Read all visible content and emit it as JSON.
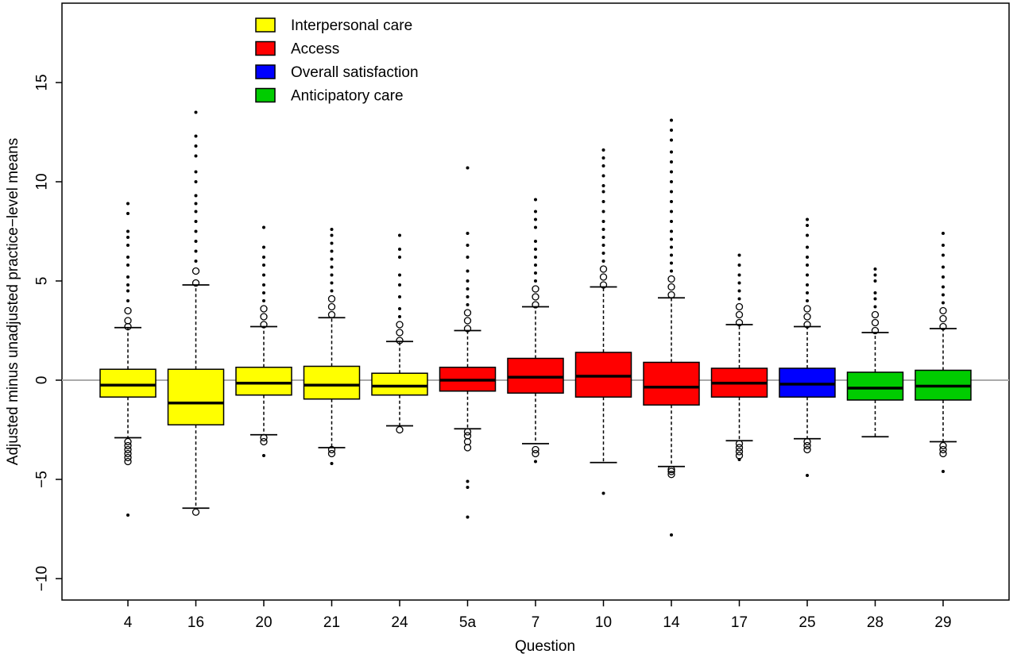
{
  "chart_data": {
    "type": "boxplot",
    "xlabel": "Question",
    "ylabel": "Adjusted minus unadjusted practice−level means",
    "ylim": [
      -11.2,
      19.0
    ],
    "yticks": [
      -10,
      -5,
      0,
      5,
      10,
      15
    ],
    "ytick_labels": [
      "−10",
      "−5",
      "0",
      "5",
      "10",
      "15"
    ],
    "reference_line": 0,
    "reference_color": "#aaaaaa",
    "legend": {
      "position": "top-left",
      "entries": [
        {
          "label": "Interpersonal care",
          "color": "#ffff00"
        },
        {
          "label": "Access",
          "color": "#ff0000"
        },
        {
          "label": "Overall satisfaction",
          "color": "#0000ff"
        },
        {
          "label": "Anticipatory care",
          "color": "#00cc00"
        }
      ]
    },
    "categories": [
      "4",
      "16",
      "20",
      "21",
      "24",
      "5a",
      "7",
      "10",
      "14",
      "17",
      "25",
      "28",
      "29"
    ],
    "boxes": [
      {
        "q1": -0.85,
        "median": -0.25,
        "q3": 0.55,
        "whisker_low": -2.9,
        "whisker_high": 2.65,
        "color": "#ffff00",
        "outliers_high": [
          2.7,
          3.0,
          3.5,
          4.0,
          4.5,
          4.8,
          5.2,
          5.8,
          6.2,
          6.8,
          7.2,
          7.5,
          8.4,
          8.9
        ],
        "outliers_low": [
          -3.1,
          -3.3,
          -3.5,
          -3.7,
          -3.9,
          -4.1,
          -6.8
        ]
      },
      {
        "q1": -2.25,
        "median": -1.15,
        "q3": 0.55,
        "whisker_low": -6.45,
        "whisker_high": 4.8,
        "color": "#ffff00",
        "outliers_high": [
          4.9,
          5.5,
          6.0,
          6.5,
          7.0,
          7.5,
          8.0,
          8.5,
          8.9,
          9.3,
          10.0,
          10.5,
          11.3,
          11.8,
          12.3,
          13.5
        ],
        "outliers_low": [
          -6.65
        ]
      },
      {
        "q1": -0.75,
        "median": -0.15,
        "q3": 0.65,
        "whisker_low": -2.75,
        "whisker_high": 2.7,
        "color": "#ffff00",
        "outliers_high": [
          2.8,
          3.2,
          3.6,
          4.0,
          4.4,
          4.8,
          5.3,
          5.8,
          6.2,
          6.7,
          7.7
        ],
        "outliers_low": [
          -2.9,
          -3.1,
          -3.8
        ]
      },
      {
        "q1": -0.95,
        "median": -0.25,
        "q3": 0.7,
        "whisker_low": -3.4,
        "whisker_high": 3.15,
        "color": "#ffff00",
        "outliers_high": [
          3.3,
          3.7,
          4.1,
          4.5,
          4.9,
          5.3,
          5.7,
          6.1,
          6.5,
          6.9,
          7.3,
          7.6
        ],
        "outliers_low": [
          -3.5,
          -3.7,
          -4.2
        ]
      },
      {
        "q1": -0.75,
        "median": -0.3,
        "q3": 0.35,
        "whisker_low": -2.3,
        "whisker_high": 1.95,
        "color": "#ffff00",
        "outliers_high": [
          2.0,
          2.4,
          2.8,
          3.2,
          3.6,
          4.2,
          4.8,
          5.3,
          6.2,
          6.6,
          7.3
        ],
        "outliers_low": [
          -2.5
        ]
      },
      {
        "q1": -0.55,
        "median": 0.0,
        "q3": 0.65,
        "whisker_low": -2.45,
        "whisker_high": 2.5,
        "color": "#ff0000",
        "outliers_high": [
          2.6,
          3.0,
          3.4,
          3.8,
          4.2,
          4.6,
          5.0,
          5.5,
          6.2,
          6.8,
          7.4,
          10.7
        ],
        "outliers_low": [
          -2.6,
          -2.8,
          -3.1,
          -3.4,
          -5.1,
          -5.4,
          -6.9
        ]
      },
      {
        "q1": -0.65,
        "median": 0.15,
        "q3": 1.1,
        "whisker_low": -3.2,
        "whisker_high": 3.7,
        "color": "#ff0000",
        "outliers_high": [
          3.8,
          4.2,
          4.6,
          5.0,
          5.4,
          5.8,
          6.2,
          6.6,
          7.0,
          7.7,
          8.1,
          8.5,
          9.1
        ],
        "outliers_low": [
          -3.5,
          -3.7,
          -4.1
        ]
      },
      {
        "q1": -0.85,
        "median": 0.2,
        "q3": 1.4,
        "whisker_low": -4.15,
        "whisker_high": 4.7,
        "color": "#ff0000",
        "outliers_high": [
          4.8,
          5.2,
          5.6,
          6.0,
          6.4,
          6.8,
          7.2,
          7.6,
          8.0,
          8.5,
          9.0,
          9.5,
          9.8,
          10.3,
          10.8,
          11.2,
          11.6
        ],
        "outliers_low": [
          -5.7
        ]
      },
      {
        "q1": -1.25,
        "median": -0.35,
        "q3": 0.9,
        "whisker_low": -4.35,
        "whisker_high": 4.15,
        "color": "#ff0000",
        "outliers_high": [
          4.3,
          4.7,
          5.1,
          5.5,
          5.9,
          6.3,
          6.7,
          7.1,
          7.5,
          8.0,
          8.5,
          9.0,
          9.5,
          10.0,
          10.5,
          11.0,
          11.5,
          12.1,
          12.6,
          13.1
        ],
        "outliers_low": [
          -4.5,
          -4.6,
          -4.75,
          -7.8
        ]
      },
      {
        "q1": -0.85,
        "median": -0.15,
        "q3": 0.6,
        "whisker_low": -3.05,
        "whisker_high": 2.8,
        "color": "#ff0000",
        "outliers_high": [
          2.9,
          3.3,
          3.7,
          4.1,
          4.5,
          4.9,
          5.3,
          5.8,
          6.3
        ],
        "outliers_low": [
          -3.2,
          -3.4,
          -3.6,
          -3.8,
          -4.0
        ]
      },
      {
        "q1": -0.85,
        "median": -0.2,
        "q3": 0.6,
        "whisker_low": -2.95,
        "whisker_high": 2.7,
        "color": "#0000ff",
        "outliers_high": [
          2.8,
          3.2,
          3.6,
          4.0,
          4.4,
          4.8,
          5.3,
          5.8,
          6.2,
          6.7,
          7.3,
          7.8,
          8.1
        ],
        "outliers_low": [
          -3.1,
          -3.3,
          -3.5,
          -4.8
        ]
      },
      {
        "q1": -1.0,
        "median": -0.4,
        "q3": 0.4,
        "whisker_low": -2.85,
        "whisker_high": 2.4,
        "color": "#00cc00",
        "outliers_high": [
          2.5,
          2.9,
          3.3,
          3.7,
          4.1,
          4.4,
          5.0,
          5.3,
          5.6
        ],
        "outliers_low": []
      },
      {
        "q1": -1.0,
        "median": -0.3,
        "q3": 0.5,
        "whisker_low": -3.1,
        "whisker_high": 2.6,
        "color": "#00cc00",
        "outliers_high": [
          2.7,
          3.1,
          3.5,
          3.9,
          4.3,
          4.7,
          5.2,
          5.7,
          6.3,
          6.8,
          7.4
        ],
        "outliers_low": [
          -3.3,
          -3.5,
          -3.7,
          -4.6
        ]
      }
    ]
  }
}
